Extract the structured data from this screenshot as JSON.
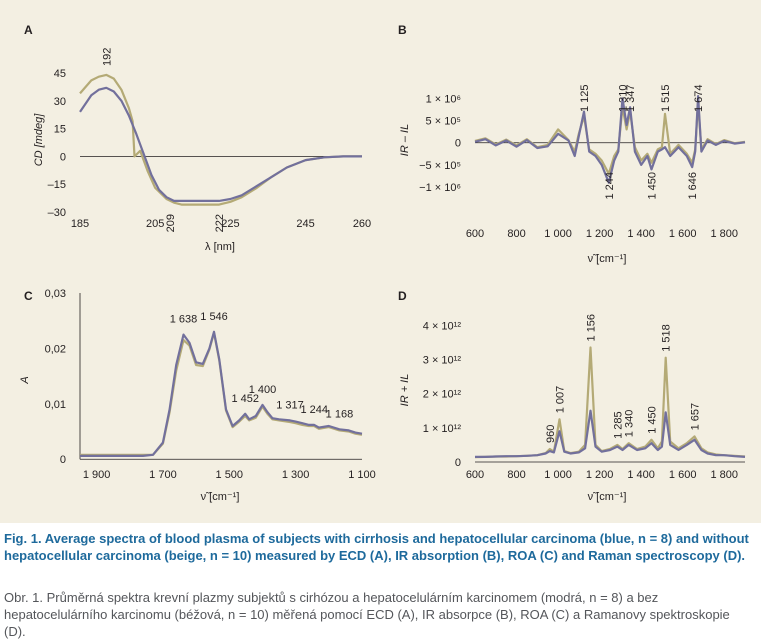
{
  "colors": {
    "blue": "#72709c",
    "beige": "#b4aa76",
    "background": "#f3efe2",
    "caption_blue": "#1e6a9c"
  },
  "caption": {
    "en": "Fig. 1. Average spectra of blood plasma of subjects with cirrhosis and hepatocellular carcinoma (blue, n = 8) and without hepatocellular carcinoma (beige, n = 10) measured by ECD (A), IR absorption (B), ROA (C) and Raman spectroscopy (D).",
    "cz": "Obr. 1. Průměrná spektra krevní plazmy subjektů s cirhózou a hepatocelulárním karcinomem (modrá, n = 8) a bez hepatocelulárního karcinomu (béžová, n = 10) měřená pomocí ECD (A), IR absorpce (B), ROA (C) a Ramanovy spektroskopie (D)."
  },
  "chart_data": [
    {
      "panel": "A",
      "type": "line",
      "xlabel": "λ [nm]",
      "ylabel": "CD [mdeg]",
      "xlim": [
        185,
        260
      ],
      "ylim": [
        -30,
        45
      ],
      "xticks": [
        "185",
        "205",
        "225",
        "245",
        "260"
      ],
      "xtick_values": [
        185,
        205,
        225,
        245,
        260
      ],
      "yticks": [
        "45",
        "30",
        "15",
        "0",
        "–15",
        "–30"
      ],
      "ytick_values": [
        45,
        30,
        15,
        0,
        -15,
        -30
      ],
      "annotations": [
        {
          "text": "192",
          "x": 192
        },
        {
          "text": "209",
          "x": 209
        },
        {
          "text": "222",
          "x": 222
        }
      ],
      "series": [
        {
          "color": "blue",
          "x": [
            185,
            188,
            190,
            192,
            194,
            196,
            198,
            200,
            202,
            204,
            206,
            208,
            210,
            212,
            215,
            218,
            220,
            222,
            225,
            228,
            232,
            236,
            240,
            245,
            250,
            255,
            260
          ],
          "y": [
            24,
            33,
            36,
            37,
            35,
            30,
            22,
            12,
            1,
            -10,
            -18,
            -22,
            -24,
            -24,
            -24,
            -24,
            -24,
            -24,
            -23,
            -21,
            -16,
            -11,
            -6,
            -2,
            -0.5,
            0,
            0
          ]
        },
        {
          "color": "beige",
          "x": [
            185,
            188,
            190,
            192,
            194,
            196,
            198,
            199,
            199.5,
            201,
            203,
            205,
            208,
            210,
            212,
            215,
            218,
            220,
            222,
            225,
            228,
            232,
            236,
            240,
            245,
            250,
            255,
            260
          ],
          "y": [
            34,
            41,
            43,
            44,
            42,
            36,
            26,
            19,
            0,
            3,
            -8,
            -17,
            -23,
            -25,
            -26,
            -26,
            -26,
            -26,
            -26,
            -24.5,
            -22,
            -17,
            -11,
            -6,
            -2,
            -0.5,
            0,
            0
          ]
        }
      ]
    },
    {
      "panel": "B",
      "type": "line",
      "ylabel": "IR – IL",
      "xlabel": "ν̃ [cm⁻¹]",
      "xlim": [
        600,
        1900
      ],
      "ylim": [
        -1200000,
        1300000
      ],
      "xticks": [
        "600",
        "800",
        "1 000",
        "1 200",
        "1 400",
        "1 600",
        "1 800"
      ],
      "xtick_values": [
        600,
        800,
        1000,
        1200,
        1400,
        1600,
        1800
      ],
      "yticks": [
        "1 × 10⁶",
        "5 × 10⁵",
        "0",
        "−5 × 10⁵",
        "−1 × 10⁶"
      ],
      "ytick_values": [
        1000000,
        500000,
        0,
        -500000,
        -1000000
      ],
      "annotations": [
        {
          "text": "1 125",
          "x": 1125,
          "pos": "top"
        },
        {
          "text": "1 310",
          "x": 1310,
          "pos": "top"
        },
        {
          "text": "1 347",
          "x": 1347,
          "pos": "top"
        },
        {
          "text": "1 515",
          "x": 1515,
          "pos": "top"
        },
        {
          "text": "1 674",
          "x": 1674,
          "pos": "top"
        },
        {
          "text": "1 244",
          "x": 1244,
          "pos": "bottom"
        },
        {
          "text": "1 450",
          "x": 1450,
          "pos": "bottom"
        },
        {
          "text": "1 646",
          "x": 1646,
          "pos": "bottom"
        }
      ],
      "series": [
        {
          "color": "blue",
          "x": [
            600,
            650,
            700,
            750,
            800,
            850,
            900,
            950,
            1000,
            1050,
            1080,
            1100,
            1125,
            1150,
            1180,
            1210,
            1244,
            1270,
            1290,
            1310,
            1330,
            1347,
            1370,
            1400,
            1430,
            1450,
            1480,
            1500,
            1515,
            1540,
            1580,
            1620,
            1646,
            1660,
            1674,
            1690,
            1720,
            1760,
            1800,
            1850,
            1900
          ],
          "y": [
            20000,
            80000,
            -60000,
            50000,
            -90000,
            60000,
            -120000,
            -80000,
            200000,
            50000,
            -300000,
            150000,
            700000,
            -200000,
            -300000,
            -500000,
            -900000,
            -400000,
            -200000,
            1000000,
            400000,
            800000,
            -200000,
            -500000,
            -300000,
            -600000,
            -200000,
            -150000,
            -100000,
            -300000,
            -100000,
            -300000,
            -550000,
            -200000,
            1050000,
            -200000,
            50000,
            -50000,
            40000,
            -20000,
            10000
          ]
        },
        {
          "color": "beige",
          "x": [
            600,
            650,
            700,
            750,
            800,
            850,
            900,
            950,
            1000,
            1050,
            1080,
            1100,
            1125,
            1150,
            1180,
            1210,
            1244,
            1270,
            1290,
            1310,
            1330,
            1347,
            1370,
            1400,
            1430,
            1450,
            1480,
            1500,
            1515,
            1540,
            1580,
            1620,
            1646,
            1660,
            1674,
            1690,
            1720,
            1760,
            1800,
            1850,
            1900
          ],
          "y": [
            40000,
            100000,
            -40000,
            70000,
            -60000,
            80000,
            -100000,
            -50000,
            300000,
            60000,
            -200000,
            200000,
            600000,
            -150000,
            -250000,
            -400000,
            -700000,
            -300000,
            -150000,
            800000,
            300000,
            700000,
            -100000,
            -400000,
            -250000,
            -450000,
            -150000,
            -100000,
            650000,
            -250000,
            -50000,
            -250000,
            -450000,
            -150000,
            900000,
            -150000,
            80000,
            -30000,
            60000,
            -10000,
            20000
          ]
        }
      ]
    },
    {
      "panel": "C",
      "type": "line",
      "ylabel": "A",
      "xlabel": "ν̃ [cm⁻¹]",
      "xlim": [
        1950,
        1100
      ],
      "ylim": [
        -0.0005,
        0.03
      ],
      "xticks": [
        "1 900",
        "1 700",
        "1 500",
        "1 300",
        "1 100"
      ],
      "xtick_values": [
        1900,
        1700,
        1500,
        1300,
        1100
      ],
      "yticks": [
        "0,03",
        "0,02",
        "0,01",
        "0"
      ],
      "ytick_values": [
        0.03,
        0.02,
        0.01,
        0
      ],
      "annotations": [
        {
          "text": "1 638",
          "x": 1638
        },
        {
          "text": "1 546",
          "x": 1546
        },
        {
          "text": "1 452",
          "x": 1452
        },
        {
          "text": "1 400",
          "x": 1400
        },
        {
          "text": "1 317",
          "x": 1317
        },
        {
          "text": "1 244",
          "x": 1244
        },
        {
          "text": "1 168",
          "x": 1168
        }
      ],
      "series": [
        {
          "color": "blue",
          "x": [
            1950,
            1900,
            1850,
            1800,
            1760,
            1730,
            1700,
            1680,
            1660,
            1638,
            1620,
            1600,
            1580,
            1560,
            1546,
            1530,
            1510,
            1490,
            1470,
            1452,
            1440,
            1420,
            1400,
            1385,
            1370,
            1350,
            1317,
            1300,
            1280,
            1260,
            1244,
            1230,
            1200,
            1168,
            1140,
            1120,
            1100
          ],
          "y": [
            0.0006,
            0.0006,
            0.0006,
            0.0006,
            0.0006,
            0.0008,
            0.003,
            0.009,
            0.017,
            0.0225,
            0.021,
            0.0175,
            0.0172,
            0.02,
            0.023,
            0.018,
            0.009,
            0.006,
            0.007,
            0.0082,
            0.0072,
            0.0078,
            0.0098,
            0.0085,
            0.0074,
            0.0072,
            0.007,
            0.0068,
            0.0065,
            0.0062,
            0.0062,
            0.0057,
            0.006,
            0.0054,
            0.0052,
            0.0048,
            0.0046
          ]
        },
        {
          "color": "beige",
          "x": [
            1950,
            1900,
            1850,
            1800,
            1760,
            1730,
            1700,
            1680,
            1660,
            1638,
            1620,
            1600,
            1580,
            1560,
            1546,
            1530,
            1510,
            1490,
            1470,
            1452,
            1440,
            1420,
            1400,
            1385,
            1370,
            1350,
            1317,
            1300,
            1280,
            1260,
            1244,
            1230,
            1200,
            1168,
            1140,
            1120,
            1100
          ],
          "y": [
            0.0008,
            0.0008,
            0.0008,
            0.0008,
            0.0008,
            0.0008,
            0.0028,
            0.0085,
            0.016,
            0.0215,
            0.0205,
            0.017,
            0.0168,
            0.0198,
            0.0228,
            0.0178,
            0.0088,
            0.0058,
            0.0068,
            0.0078,
            0.007,
            0.0075,
            0.0095,
            0.0082,
            0.0072,
            0.007,
            0.0067,
            0.0065,
            0.0062,
            0.006,
            0.006,
            0.0055,
            0.0058,
            0.0052,
            0.005,
            0.0046,
            0.0044
          ]
        }
      ]
    },
    {
      "panel": "D",
      "type": "line",
      "ylabel": "IR + IL",
      "xlabel": "ν̃ [cm⁻¹]",
      "xlim": [
        600,
        1900
      ],
      "ylim": [
        0,
        4300000000000
      ],
      "xticks": [
        "600",
        "800",
        "1 000",
        "1 200",
        "1 400",
        "1 600",
        "1 800"
      ],
      "xtick_values": [
        600,
        800,
        1000,
        1200,
        1400,
        1600,
        1800
      ],
      "yticks": [
        "4 × 10¹²",
        "3 × 10¹²",
        "2 × 10¹²",
        "1 × 10¹²",
        "0"
      ],
      "ytick_values": [
        4000000000000,
        3000000000000,
        2000000000000,
        1000000000000,
        0
      ],
      "annotations": [
        {
          "text": "960",
          "x": 960
        },
        {
          "text": "1 007",
          "x": 1007
        },
        {
          "text": "1 156",
          "x": 1156
        },
        {
          "text": "1 285",
          "x": 1285
        },
        {
          "text": "1 340",
          "x": 1340
        },
        {
          "text": "1 450",
          "x": 1450
        },
        {
          "text": "1 518",
          "x": 1518
        },
        {
          "text": "1 657",
          "x": 1657
        }
      ],
      "series": [
        {
          "color": "blue",
          "x": [
            600,
            650,
            700,
            750,
            800,
            850,
            900,
            940,
            960,
            980,
            1007,
            1030,
            1060,
            1100,
            1130,
            1156,
            1180,
            1210,
            1250,
            1285,
            1310,
            1340,
            1380,
            1420,
            1450,
            1480,
            1500,
            1518,
            1540,
            1580,
            1620,
            1657,
            1690,
            1720,
            1760,
            1800,
            1850,
            1900
          ],
          "y": [
            150000000000,
            150000000000,
            160000000000,
            170000000000,
            170000000000,
            180000000000,
            200000000000,
            250000000000,
            320000000000,
            280000000000,
            900000000000,
            300000000000,
            250000000000,
            280000000000,
            400000000000,
            1500000000000,
            450000000000,
            300000000000,
            350000000000,
            450000000000,
            350000000000,
            500000000000,
            350000000000,
            400000000000,
            550000000000,
            350000000000,
            450000000000,
            1450000000000,
            500000000000,
            350000000000,
            500000000000,
            650000000000,
            350000000000,
            250000000000,
            200000000000,
            200000000000,
            170000000000,
            150000000000
          ]
        },
        {
          "color": "beige",
          "x": [
            600,
            650,
            700,
            750,
            800,
            850,
            900,
            940,
            960,
            980,
            1007,
            1030,
            1060,
            1100,
            1130,
            1156,
            1180,
            1210,
            1250,
            1285,
            1310,
            1340,
            1380,
            1420,
            1450,
            1480,
            1500,
            1518,
            1540,
            1580,
            1620,
            1657,
            1690,
            1720,
            1760,
            1800,
            1850,
            1900
          ],
          "y": [
            140000000000,
            150000000000,
            160000000000,
            160000000000,
            170000000000,
            180000000000,
            200000000000,
            260000000000,
            380000000000,
            300000000000,
            1250000000000,
            320000000000,
            260000000000,
            300000000000,
            500000000000,
            3350000000000,
            500000000000,
            320000000000,
            380000000000,
            500000000000,
            380000000000,
            550000000000,
            380000000000,
            450000000000,
            650000000000,
            400000000000,
            600000000000,
            3050000000000,
            600000000000,
            400000000000,
            550000000000,
            750000000000,
            400000000000,
            280000000000,
            220000000000,
            200000000000,
            180000000000,
            160000000000
          ]
        }
      ]
    }
  ]
}
